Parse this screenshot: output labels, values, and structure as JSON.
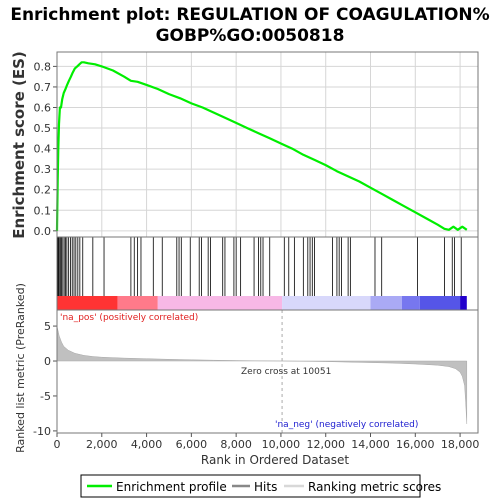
{
  "title_line1": "Enrichment plot: REGULATION OF COAGULATION%",
  "title_line2": "GOBP%GO:0050818",
  "chart_data": {
    "type": "line",
    "title": "Enrichment plot: REGULATION OF COAGULATION% GOBP%GO:0050818",
    "xlabel": "Rank in Ordered Dataset",
    "xlim": [
      0,
      18800
    ],
    "x_ticks": [
      0,
      2000,
      4000,
      6000,
      8000,
      10000,
      12000,
      14000,
      16000,
      18000
    ],
    "x_tick_labels": [
      "0",
      "2,000",
      "4,000",
      "6,000",
      "8,000",
      "10,000",
      "12,000",
      "14,000",
      "16,000",
      "18,000"
    ],
    "es_panel": {
      "ylabel": "Enrichment score (ES)",
      "ylim": [
        -0.03,
        0.87
      ],
      "y_ticks": [
        0.0,
        0.1,
        0.2,
        0.3,
        0.4,
        0.5,
        0.6,
        0.7,
        0.8
      ],
      "y_tick_labels": [
        "0.0",
        "0.1",
        "0.2",
        "0.3",
        "0.4",
        "0.5",
        "0.6",
        "0.7",
        "0.8"
      ],
      "grid": true,
      "series": [
        {
          "name": "Enrichment profile",
          "color": "#00ee00",
          "x": [
            0,
            30,
            60,
            90,
            130,
            180,
            230,
            300,
            380,
            450,
            530,
            620,
            700,
            800,
            900,
            1000,
            1100,
            1200,
            1400,
            1700,
            2000,
            2500,
            3000,
            3300,
            3600,
            4000,
            4500,
            5000,
            5500,
            6000,
            6500,
            7000,
            7500,
            8000,
            8500,
            9000,
            9500,
            10000,
            10500,
            11000,
            11500,
            12000,
            12500,
            13000,
            13500,
            14000,
            14500,
            15000,
            15500,
            16000,
            16500,
            17000,
            17300,
            17500,
            17700,
            17900,
            18100,
            18300
          ],
          "y": [
            0.0,
            0.25,
            0.4,
            0.52,
            0.6,
            0.6,
            0.64,
            0.67,
            0.69,
            0.71,
            0.73,
            0.75,
            0.77,
            0.79,
            0.8,
            0.81,
            0.82,
            0.82,
            0.815,
            0.81,
            0.8,
            0.78,
            0.75,
            0.73,
            0.725,
            0.71,
            0.69,
            0.665,
            0.645,
            0.62,
            0.6,
            0.575,
            0.55,
            0.525,
            0.5,
            0.475,
            0.45,
            0.425,
            0.4,
            0.37,
            0.345,
            0.32,
            0.29,
            0.265,
            0.24,
            0.21,
            0.18,
            0.15,
            0.12,
            0.09,
            0.06,
            0.03,
            0.01,
            0.005,
            0.02,
            0.005,
            0.02,
            0.005
          ]
        }
      ]
    },
    "hits_panel": {
      "hit_positions": [
        40,
        70,
        100,
        150,
        200,
        260,
        320,
        380,
        440,
        520,
        600,
        680,
        760,
        840,
        930,
        1020,
        1150,
        1600,
        2100,
        3300,
        3450,
        3600,
        3750,
        4300,
        4700,
        5350,
        5450,
        5550,
        5950,
        6350,
        6450,
        6750,
        6850,
        7400,
        7500,
        7900,
        8000,
        8200,
        8800,
        9000,
        9100,
        9200,
        9500,
        10150,
        10350,
        10600,
        11000,
        11200,
        11300,
        11400,
        11500,
        12300,
        12500,
        12600,
        12700,
        13000,
        13100,
        14200,
        14500,
        16100,
        17300,
        17650,
        17750,
        18050
      ]
    },
    "heat_bar": {
      "bands": [
        {
          "from": 0,
          "to": 2700,
          "color": "#ff3333"
        },
        {
          "from": 2700,
          "to": 4500,
          "color": "#ff7a8a"
        },
        {
          "from": 4500,
          "to": 10051,
          "color": "#f7b8e6"
        },
        {
          "from": 10051,
          "to": 14000,
          "color": "#d8d8fb"
        },
        {
          "from": 14000,
          "to": 15400,
          "color": "#aaaaf5"
        },
        {
          "from": 15400,
          "to": 16200,
          "color": "#7777ef"
        },
        {
          "from": 16200,
          "to": 18000,
          "color": "#5555e8"
        },
        {
          "from": 18000,
          "to": 18300,
          "color": "#2200cc"
        }
      ]
    },
    "ranked_metric_panel": {
      "ylabel": "Ranked list metric (PreRanked)",
      "ylim": [
        -10.3,
        7.3
      ],
      "y_ticks": [
        -10,
        -5,
        0,
        5
      ],
      "y_tick_labels": [
        "-10",
        "-5",
        "0",
        "5"
      ],
      "x": [
        0,
        50,
        100,
        200,
        300,
        500,
        800,
        1200,
        1600,
        2000,
        3000,
        4000,
        5000,
        6000,
        7000,
        8000,
        9000,
        10051,
        11000,
        12000,
        13000,
        14000,
        15000,
        16000,
        17000,
        17500,
        17800,
        18000,
        18100,
        18200,
        18250,
        18300
      ],
      "values": [
        5.0,
        4.3,
        3.6,
        2.7,
        2.1,
        1.55,
        1.1,
        0.8,
        0.65,
        0.55,
        0.42,
        0.33,
        0.25,
        0.18,
        0.12,
        0.07,
        0.03,
        0.0,
        -0.04,
        -0.09,
        -0.15,
        -0.22,
        -0.3,
        -0.42,
        -0.6,
        -0.8,
        -1.1,
        -1.6,
        -2.2,
        -3.5,
        -6.0,
        -9.0
      ],
      "zero_cross": 10051,
      "annotations": {
        "pos": "'na_pos' (positively correlated)",
        "neg": "'na_neg' (negatively correlated)",
        "zero": "Zero cross at 10051"
      }
    },
    "legend": {
      "placement": "bottom",
      "items": [
        "Enrichment profile",
        "Hits",
        "Ranking metric scores"
      ]
    }
  }
}
